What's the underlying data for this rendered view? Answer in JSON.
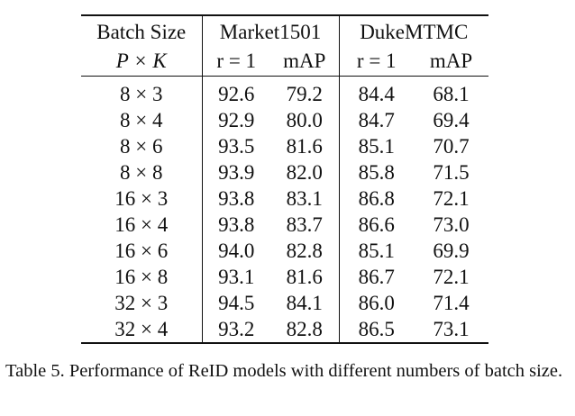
{
  "table": {
    "header": {
      "batch_size_label": "Batch Size",
      "batch_formula": "P × K",
      "dataset1": "Market1501",
      "dataset2": "DukeMTMC",
      "r1_label": "r = 1",
      "map_label": "mAP"
    },
    "rows": [
      {
        "batch": "8 × 3",
        "m_r1": "92.6",
        "m_map": "79.2",
        "d_r1": "84.4",
        "d_map": "68.1"
      },
      {
        "batch": "8 × 4",
        "m_r1": "92.9",
        "m_map": "80.0",
        "d_r1": "84.7",
        "d_map": "69.4"
      },
      {
        "batch": "8 × 6",
        "m_r1": "93.5",
        "m_map": "81.6",
        "d_r1": "85.1",
        "d_map": "70.7"
      },
      {
        "batch": "8 × 8",
        "m_r1": "93.9",
        "m_map": "82.0",
        "d_r1": "85.8",
        "d_map": "71.5"
      },
      {
        "batch": "16 × 3",
        "m_r1": "93.8",
        "m_map": "83.1",
        "d_r1": "86.8",
        "d_map": "72.1"
      },
      {
        "batch": "16 × 4",
        "m_r1": "93.8",
        "m_map": "83.7",
        "d_r1": "86.6",
        "d_map": "73.0"
      },
      {
        "batch": "16 × 6",
        "m_r1": "94.0",
        "m_map": "82.8",
        "d_r1": "85.1",
        "d_map": "69.9"
      },
      {
        "batch": "16 × 8",
        "m_r1": "93.1",
        "m_map": "81.6",
        "d_r1": "86.7",
        "d_map": "72.1"
      },
      {
        "batch": "32 × 3",
        "m_r1": "94.5",
        "m_map": "84.1",
        "d_r1": "86.0",
        "d_map": "71.4"
      },
      {
        "batch": "32 × 4",
        "m_r1": "93.2",
        "m_map": "82.8",
        "d_r1": "86.5",
        "d_map": "73.1"
      }
    ]
  },
  "caption": "Table 5. Performance of ReID models with different numbers of batch size."
}
